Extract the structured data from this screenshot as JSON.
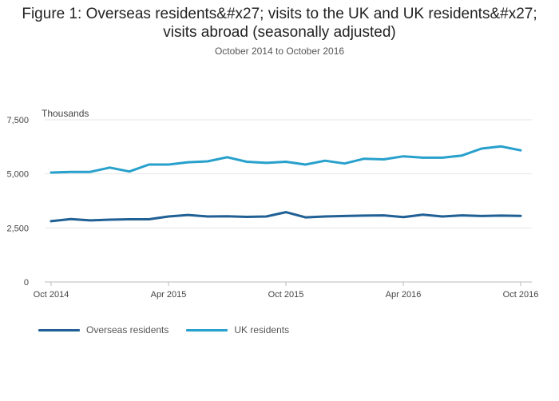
{
  "chart_data": {
    "type": "line",
    "title": "Figure 1: Overseas residents&#x27; visits to the UK and UK residents&#x27; visits abroad (seasonally adjusted)",
    "subtitle": "October 2014 to October 2016",
    "ylabel": "Thousands",
    "xlabel": "",
    "ylim": [
      0,
      7500
    ],
    "yticks": [
      0,
      2500,
      5000,
      7500
    ],
    "ytick_labels": [
      "0",
      "2,500",
      "5,000",
      "7,500"
    ],
    "xticks": [
      0,
      6,
      12,
      18,
      24
    ],
    "xtick_labels": [
      "Oct 2014",
      "Apr 2015",
      "Oct 2015",
      "Apr 2016",
      "Oct 2016"
    ],
    "x": [
      "Oct 2014",
      "Nov 2014",
      "Dec 2014",
      "Jan 2015",
      "Feb 2015",
      "Mar 2015",
      "Apr 2015",
      "May 2015",
      "Jun 2015",
      "Jul 2015",
      "Aug 2015",
      "Sep 2015",
      "Oct 2015",
      "Nov 2015",
      "Dec 2015",
      "Jan 2016",
      "Feb 2016",
      "Mar 2016",
      "Apr 2016",
      "May 2016",
      "Jun 2016",
      "Jul 2016",
      "Aug 2016",
      "Sep 2016",
      "Oct 2016"
    ],
    "grid": true,
    "legend_position": "bottom-left",
    "series": [
      {
        "name": "Overseas residents",
        "color": "#206095",
        "values": [
          2810,
          2910,
          2850,
          2880,
          2900,
          2900,
          3030,
          3100,
          3030,
          3040,
          3010,
          3030,
          3230,
          2990,
          3030,
          3050,
          3070,
          3080,
          3000,
          3110,
          3030,
          3080,
          3050,
          3070,
          3060
        ]
      },
      {
        "name": "UK residents",
        "color": "#27a0cc",
        "values": [
          5060,
          5090,
          5090,
          5290,
          5110,
          5430,
          5430,
          5540,
          5580,
          5770,
          5560,
          5510,
          5560,
          5430,
          5610,
          5480,
          5700,
          5670,
          5810,
          5750,
          5750,
          5850,
          6170,
          6270,
          6090
        ]
      }
    ]
  }
}
